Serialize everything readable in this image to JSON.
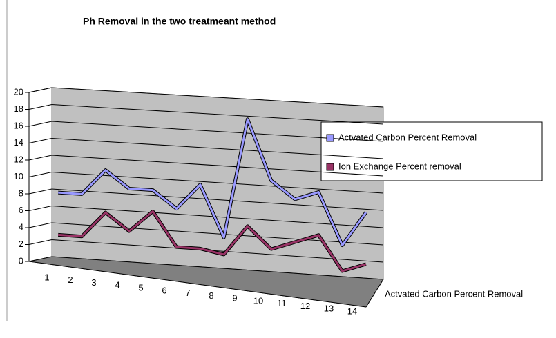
{
  "chart_data": {
    "type": "line",
    "title": "Ph Removal in the two treatmeant method",
    "categories": [
      "1",
      "2",
      "3",
      "4",
      "5",
      "6",
      "7",
      "8",
      "9",
      "10",
      "11",
      "12",
      "13",
      "14"
    ],
    "series": [
      {
        "name": "Actvated Carbon Percent Removal",
        "color": "#9999ff",
        "values": [
          8,
          8,
          11,
          9,
          9,
          7,
          10,
          4,
          18,
          11,
          9,
          10,
          4,
          8
        ]
      },
      {
        "name": "Ion Exchange Percent removal",
        "color": "#993366",
        "values": [
          3,
          3,
          6,
          4,
          6.5,
          2.5,
          2.5,
          2,
          5.5,
          3,
          4,
          5,
          1,
          2
        ]
      }
    ],
    "depth_label": "Actvated Carbon Percent Removal",
    "ylim": [
      0,
      20
    ],
    "yticks": [
      0,
      2,
      4,
      6,
      8,
      10,
      12,
      14,
      16,
      18,
      20
    ],
    "grid": true,
    "legend": "right"
  }
}
